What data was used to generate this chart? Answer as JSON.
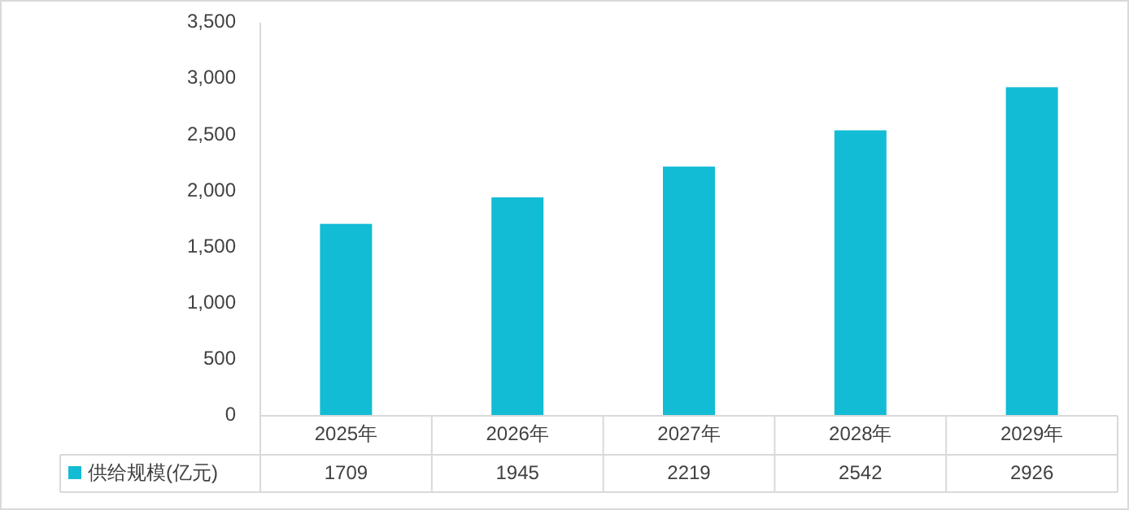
{
  "chart_data": {
    "type": "bar",
    "categories": [
      "2025年",
      "2026年",
      "2027年",
      "2028年",
      "2029年"
    ],
    "series": [
      {
        "name": "供给规模(亿元)",
        "color": "#12bcd4",
        "values": [
          1709,
          1945,
          2219,
          2542,
          2926
        ]
      }
    ],
    "ylim": [
      0,
      3500
    ],
    "yticks": [
      0,
      500,
      {
        "value": 1000,
        "label": "1,000"
      },
      {
        "value": 1500,
        "label": "1,500"
      },
      {
        "value": 2000,
        "label": "2,000"
      },
      {
        "value": 2500,
        "label": "2,500"
      },
      {
        "value": 3000,
        "label": "3,000"
      },
      {
        "value": 3500,
        "label": "3,500"
      }
    ],
    "data_labels": true,
    "legend": "bottom",
    "grid": false
  }
}
